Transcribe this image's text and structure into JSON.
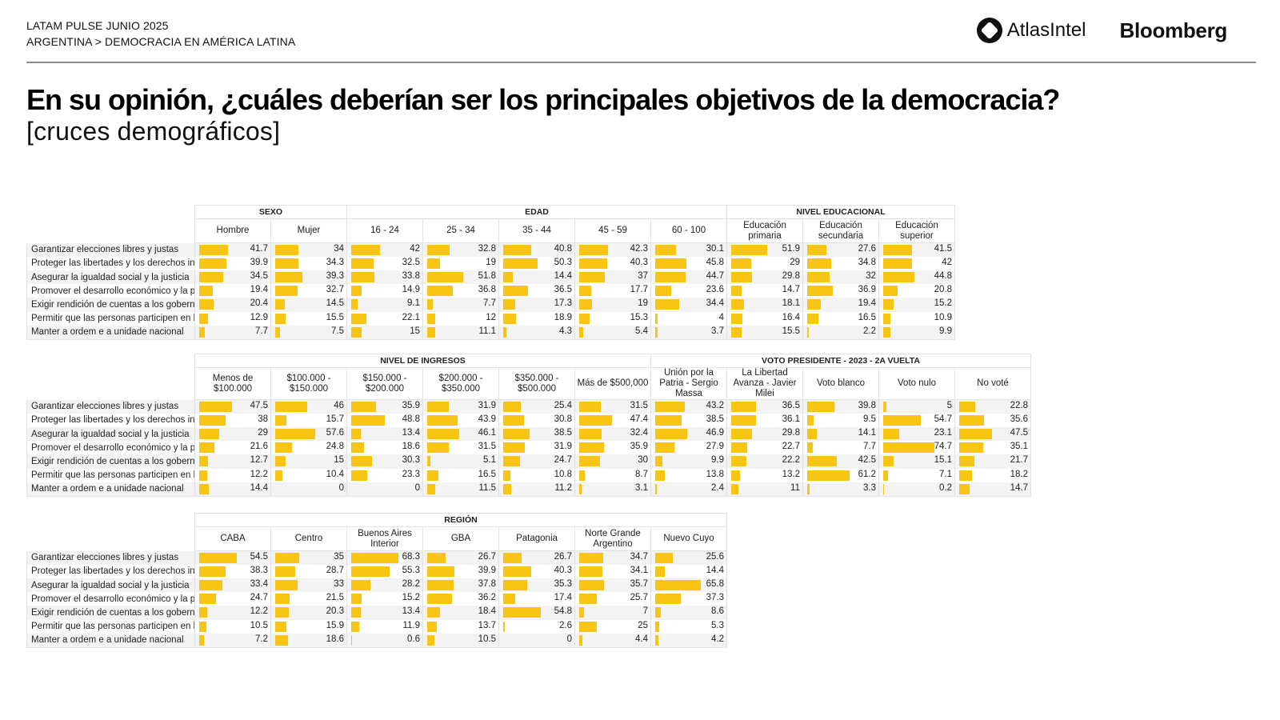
{
  "header": {
    "line1": "LATAM PULSE JUNIO 2025",
    "line2": "ARGENTINA > DEMOCRACIA EN AMÉRICA LATINA",
    "logo_atlas": "AtlasIntel",
    "logo_bloomberg": "Bloomberg"
  },
  "title": "En su opinión, ¿cuáles deberían ser los principales objetivos de la democracia?",
  "subtitle": "[cruces demográficos]",
  "colors": {
    "bar": "#f9c515",
    "border": "#e2e2e2",
    "stripe": "#f3f3f3"
  },
  "chart_data": [
    {
      "type": "table",
      "row_labels": [
        "Garantizar elecciones libres y justas",
        "Proteger las libertades y los derechos inc",
        "Asegurar la igualdad social y la justicia",
        "Promover el desarrollo económico y la pı",
        "Exigir rendición de cuentas a los gobernı",
        "Permitir que las personas participen en l.",
        "Manter a ordem e a unidade nacional"
      ],
      "groups": [
        {
          "name": "SEXO",
          "columns": [
            "Hombre",
            "Mujer"
          ]
        },
        {
          "name": "EDAD",
          "columns": [
            "16 - 24",
            "25 - 34",
            "35 - 44",
            "45 - 59",
            "60 - 100"
          ]
        },
        {
          "name": "NIVEL EDUCACIONAL",
          "columns": [
            "Educación primaria",
            "Educación secundaria",
            "Educación superior"
          ]
        }
      ],
      "values": [
        [
          41.7,
          34,
          42,
          32.8,
          40.8,
          42.3,
          30.1,
          51.9,
          27.6,
          41.5
        ],
        [
          39.9,
          34.3,
          32.5,
          19,
          50.3,
          40.3,
          45.8,
          29,
          34.8,
          42
        ],
        [
          34.5,
          39.3,
          33.8,
          51.8,
          14.4,
          37,
          44.7,
          29.8,
          32,
          44.8
        ],
        [
          19.4,
          32.7,
          14.9,
          36.8,
          36.5,
          17.7,
          23.6,
          14.7,
          36.9,
          20.8
        ],
        [
          20.4,
          14.5,
          9.1,
          7.7,
          17.3,
          19,
          34.4,
          18.1,
          19.4,
          15.2
        ],
        [
          12.9,
          15.5,
          22.1,
          12,
          18.9,
          15.3,
          4,
          16.4,
          16.5,
          10.9
        ],
        [
          7.7,
          7.5,
          15,
          11.1,
          4.3,
          5.4,
          3.7,
          15.5,
          2.2,
          9.9
        ]
      ]
    },
    {
      "type": "table",
      "row_labels": [
        "Garantizar elecciones libres y justas",
        "Proteger las libertades y los derechos inc",
        "Asegurar la igualdad social y la justicia",
        "Promover el desarrollo económico y la pı",
        "Exigir rendición de cuentas a los gobernı",
        "Permitir que las personas participen en l.",
        "Manter a ordem e a unidade nacional"
      ],
      "groups": [
        {
          "name": "NIVEL DE INGRESOS",
          "columns": [
            "Menos de $100.000",
            "$100.000 - $150.000",
            "$150.000 - $200.000",
            "$200.000 - $350.000",
            "$350.000 - $500.000",
            "Más de $500,000"
          ]
        },
        {
          "name": "VOTO PRESIDENTE - 2023 - 2A VUELTA",
          "columns": [
            "Unión por la Patria - Sergio Massa",
            "La Libertad Avanza - Javier Milei",
            "Voto blanco",
            "Voto nulo",
            "No voté"
          ]
        }
      ],
      "values": [
        [
          47.5,
          46,
          35.9,
          31.9,
          25.4,
          31.5,
          43.2,
          36.5,
          39.8,
          5,
          22.8
        ],
        [
          38,
          15.7,
          48.8,
          43.9,
          30.8,
          47.4,
          38.5,
          36.1,
          9.5,
          54.7,
          35.6
        ],
        [
          29,
          57.6,
          13.4,
          46.1,
          38.5,
          32.4,
          46.9,
          29.8,
          14.1,
          23.1,
          47.5
        ],
        [
          21.6,
          24.8,
          18.6,
          31.5,
          31.9,
          35.9,
          27.9,
          22.7,
          7.7,
          74.7,
          35.1
        ],
        [
          12.7,
          15,
          30.3,
          5.1,
          24.7,
          30,
          9.9,
          22.2,
          42.5,
          15.1,
          21.7
        ],
        [
          12.2,
          10.4,
          23.3,
          16.5,
          10.8,
          8.7,
          13.8,
          13.2,
          61.2,
          7.1,
          18.2
        ],
        [
          14.4,
          0,
          0,
          11.5,
          11.2,
          3.1,
          2.4,
          11,
          3.3,
          0.2,
          14.7
        ]
      ]
    },
    {
      "type": "table",
      "row_labels": [
        "Garantizar elecciones libres y justas",
        "Proteger las libertades y los derechos inc",
        "Asegurar la igualdad social y la justicia",
        "Promover el desarrollo económico y la pı",
        "Exigir rendición de cuentas a los gobernı",
        "Permitir que las personas participen en l.",
        "Manter a ordem e a unidade nacional"
      ],
      "groups": [
        {
          "name": "REGIÓN",
          "columns": [
            "CABA",
            "Centro",
            "Buenos Aires Interior",
            "GBA",
            "Patagonia",
            "Norte Grande Argentino",
            "Nuevo Cuyo"
          ]
        }
      ],
      "values": [
        [
          54.5,
          35,
          68.3,
          26.7,
          26.7,
          34.7,
          25.6
        ],
        [
          38.3,
          28.7,
          55.3,
          39.9,
          40.3,
          34.1,
          14.4
        ],
        [
          33.4,
          33,
          28.2,
          37.8,
          35.3,
          35.7,
          65.8
        ],
        [
          24.7,
          21.5,
          15.2,
          36.2,
          17.4,
          25.7,
          37.3
        ],
        [
          12.2,
          20.3,
          13.4,
          18.4,
          54.8,
          7,
          8.6
        ],
        [
          10.5,
          15.9,
          11.9,
          13.7,
          2.6,
          25,
          5.3
        ],
        [
          7.2,
          18.6,
          0.6,
          10.5,
          0,
          4.4,
          4.2
        ]
      ]
    }
  ]
}
